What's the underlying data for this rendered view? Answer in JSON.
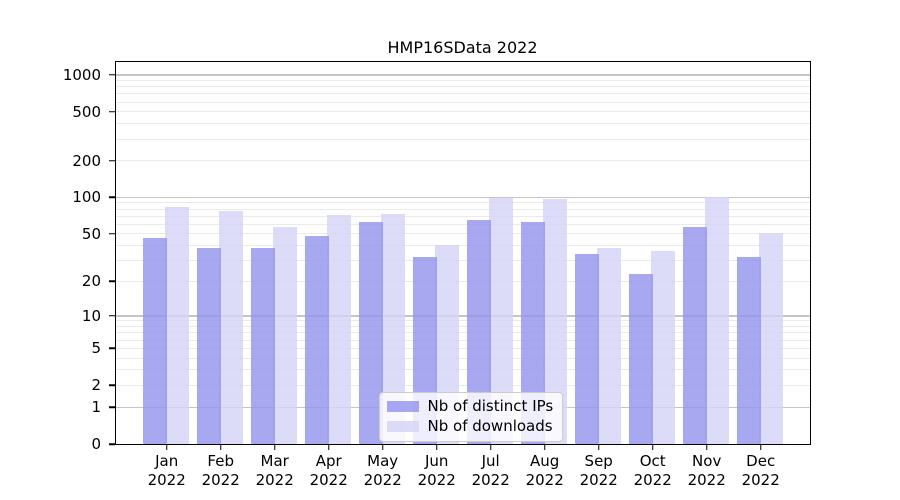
{
  "title": "HMP16SData 2022",
  "chart_data": {
    "type": "bar",
    "title": "HMP16SData 2022",
    "yscale": "pseudo-log (log10(value+1))",
    "grid": true,
    "legend_position": "lower center",
    "category_year": "2022",
    "categories": [
      "Jan",
      "Feb",
      "Mar",
      "Apr",
      "May",
      "Jun",
      "Jul",
      "Aug",
      "Sep",
      "Oct",
      "Nov",
      "Dec"
    ],
    "series": [
      {
        "name": "Nb of distinct IPs",
        "color_key": "bar_distinct_ips",
        "values": [
          46,
          38,
          38,
          48,
          62,
          32,
          65,
          62,
          34,
          23,
          57,
          32
        ]
      },
      {
        "name": "Nb of downloads",
        "color_key": "bar_downloads",
        "values": [
          82,
          76,
          56,
          71,
          72,
          40,
          98,
          96,
          38,
          36,
          100,
          50
        ]
      }
    ],
    "yaxis": {
      "tick_values": [
        0,
        1,
        2,
        5,
        10,
        20,
        50,
        100,
        200,
        500,
        1000
      ],
      "major_gridlines": [
        1,
        10,
        100,
        1000
      ],
      "minor_gridlines": [
        2,
        3,
        4,
        5,
        6,
        7,
        8,
        9,
        20,
        30,
        40,
        50,
        60,
        70,
        80,
        90,
        200,
        300,
        400,
        500,
        600,
        700,
        800,
        900
      ],
      "ylim": [
        0,
        1150
      ]
    }
  },
  "colors": {
    "bar_distinct_ips": "rgba(146,146,238,0.8)",
    "bar_downloads": "rgba(211,211,246,0.8)",
    "bar_distinct_ips_hex": "#a8a8f0",
    "bar_downloads_hex": "#dcdcf8",
    "grid_major": "#c5c5c5",
    "grid_minor": "#eaeaea",
    "axis": "#000000",
    "legend_border": "#cccccc"
  }
}
